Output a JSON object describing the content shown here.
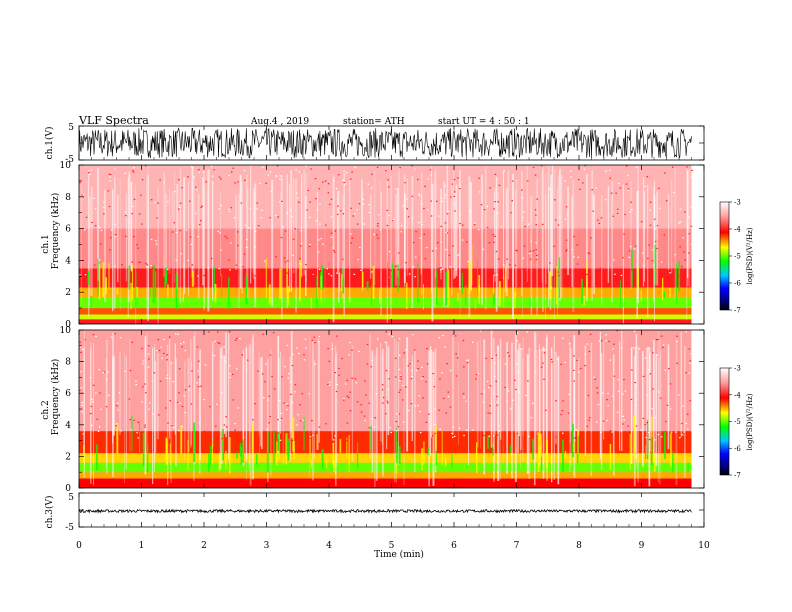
{
  "header": {
    "title": "VLF  Spectra",
    "date": "Aug.4  , 2019",
    "station": "station= ATH",
    "start": "start  UT  =   4  : 50 : 1"
  },
  "chart_data": [
    {
      "type": "line",
      "panel": "ch1-waveform",
      "ylabel": "ch.1(V)",
      "ylim": [
        -5,
        5
      ],
      "yticks": [
        "5",
        "-5"
      ],
      "xlim": [
        0,
        10
      ],
      "trace_color": "#000000",
      "amplitude_range": [
        -4.4,
        4.4
      ],
      "data_extent_min": 9.8
    },
    {
      "type": "heatmap",
      "panel": "ch1-spectrogram",
      "ylabel": [
        "ch.1",
        "Frequency  (kHz)"
      ],
      "ylim": [
        0,
        10
      ],
      "yticks": [
        "0",
        "2",
        "4",
        "6",
        "8",
        "10"
      ],
      "xlim": [
        0,
        10
      ],
      "data_extent_min": 9.8,
      "colorbar": {
        "label": "log(PSD)(V²/Hz)",
        "range": [
          -7,
          -3
        ],
        "ticks": [
          "-3",
          "-4",
          "-5",
          "-6",
          "-7"
        ]
      },
      "bands": [
        {
          "from": 0.0,
          "to": 0.3,
          "log_psd": -4.0
        },
        {
          "from": 0.3,
          "to": 0.6,
          "log_psd": -4.8
        },
        {
          "from": 0.6,
          "to": 1.0,
          "log_psd": -4.3
        },
        {
          "from": 1.0,
          "to": 1.7,
          "log_psd": -5.0
        },
        {
          "from": 1.7,
          "to": 2.3,
          "log_psd": -4.5
        },
        {
          "from": 2.3,
          "to": 3.5,
          "log_psd": -4.0
        },
        {
          "from": 3.5,
          "to": 6.0,
          "log_psd": -3.6
        },
        {
          "from": 6.0,
          "to": 10.0,
          "log_psd": -3.4
        }
      ]
    },
    {
      "type": "heatmap",
      "panel": "ch2-spectrogram",
      "ylabel": [
        "ch.2",
        "Frequency  (kHz)"
      ],
      "ylim": [
        0,
        10
      ],
      "yticks": [
        "0",
        "2",
        "4",
        "6",
        "8",
        "10"
      ],
      "xlim": [
        0,
        10
      ],
      "data_extent_min": 9.8,
      "colorbar": {
        "label": "log(PSD)(V²/Hz)",
        "range": [
          -7,
          -3
        ],
        "ticks": [
          "-3",
          "-4",
          "-5",
          "-6",
          "-7"
        ]
      },
      "bands": [
        {
          "from": 0.0,
          "to": 0.6,
          "log_psd": -4.1
        },
        {
          "from": 0.6,
          "to": 1.0,
          "log_psd": -4.5
        },
        {
          "from": 1.0,
          "to": 1.6,
          "log_psd": -5.0
        },
        {
          "from": 1.6,
          "to": 2.2,
          "log_psd": -4.6
        },
        {
          "from": 2.2,
          "to": 3.6,
          "log_psd": -4.2
        },
        {
          "from": 3.6,
          "to": 10.0,
          "log_psd": -3.5
        }
      ]
    },
    {
      "type": "line",
      "panel": "ch3-waveform",
      "ylabel": "ch.3(V)",
      "ylim": [
        -5,
        5
      ],
      "yticks": [
        "5",
        "-5"
      ],
      "xlim": [
        0,
        10
      ],
      "xlabel": "Time  (min)",
      "xticks": [
        "0",
        "1",
        "2",
        "3",
        "4",
        "5",
        "6",
        "7",
        "8",
        "9",
        "10"
      ],
      "trace_color": "#000000",
      "amplitude_range": [
        -0.7,
        0.1
      ],
      "data_extent_min": 9.8
    }
  ]
}
